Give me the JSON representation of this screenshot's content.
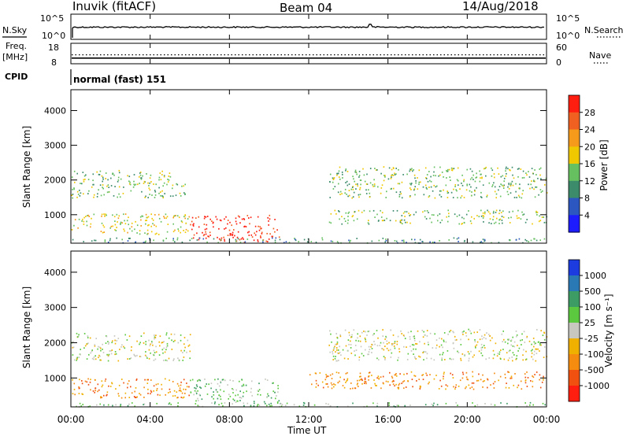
{
  "header": {
    "station": "Inuvik (fitACF)",
    "beam": "Beam 04",
    "date": "14/Aug/2018"
  },
  "nsky_panel": {
    "left_label": "N.Sky",
    "right_label": "N.Search",
    "left_ticks": [
      "10^5",
      "10^0"
    ],
    "right_ticks": [
      "10^5",
      "10^0"
    ]
  },
  "freq_panel": {
    "left_label_line1": "Freq.",
    "left_label_line2": "[MHz]",
    "right_label": "Nave",
    "left_ticks": [
      "18",
      "8"
    ],
    "right_ticks": [
      "60",
      "0"
    ],
    "freq_level_mhz": 10.5,
    "nave_level": 25
  },
  "cpid": {
    "label": "CPID",
    "mode": "normal (fast) 151"
  },
  "chart_data": [
    {
      "type": "heatmap",
      "name": "power",
      "ylabel": "Slant Range [km]",
      "xlabel": "",
      "ylim": [
        180,
        4600
      ],
      "yticks": [
        "1000",
        "2000",
        "3000",
        "4000"
      ],
      "x_hours": [
        0,
        24
      ],
      "colorbar_label": "Power [dB]",
      "colorbar_ticks": [
        "4",
        "8",
        "12",
        "16",
        "20",
        "24",
        "28"
      ],
      "colorbar_colors": [
        "#1c1cff",
        "#2c56c0",
        "#3c8c6c",
        "#66c060",
        "#f0c800",
        "#f59a1a",
        "#f06020",
        "#ff1e10"
      ],
      "scatter_bands": [
        {
          "x0": 0,
          "x1": 5,
          "y0": 1500,
          "y1": 2300,
          "level": 3
        },
        {
          "x0": 5,
          "x1": 6,
          "y0": 1550,
          "y1": 1950,
          "level": 3
        },
        {
          "x0": 13,
          "x1": 24,
          "y0": 1500,
          "y1": 2400,
          "level": 3
        },
        {
          "x0": 13,
          "x1": 24,
          "y0": 750,
          "y1": 1150,
          "level": 3
        },
        {
          "x0": 0,
          "x1": 6,
          "y0": 450,
          "y1": 1050,
          "level": 4
        },
        {
          "x0": 6,
          "x1": 10.5,
          "y0": 220,
          "y1": 1000,
          "level": 7
        },
        {
          "x0": 0,
          "x1": 24,
          "y0": 200,
          "y1": 350,
          "level": 2
        }
      ]
    },
    {
      "type": "heatmap",
      "name": "velocity",
      "ylabel": "Slant Range [km]",
      "xlabel": "Time UT",
      "ylim": [
        180,
        4600
      ],
      "yticks": [
        "1000",
        "2000",
        "3000",
        "4000"
      ],
      "xticks": [
        "00:00",
        "04:00",
        "08:00",
        "12:00",
        "16:00",
        "20:00",
        "00:00"
      ],
      "colorbar_label": "Velocity [m s⁻¹]",
      "colorbar_ticks": [
        "1000",
        "500",
        "100",
        "25",
        "-25",
        "-100",
        "-500",
        "-1000"
      ],
      "colorbar_colors": [
        "#1c3ce0",
        "#2a78b4",
        "#3c9c64",
        "#5cc840",
        "#c8c8c0",
        "#f0b000",
        "#f58c10",
        "#f05010",
        "#ff1e10"
      ],
      "scatter_bands": [
        {
          "x0": 0,
          "x1": 6,
          "y0": 1500,
          "y1": 2300,
          "level": 4
        },
        {
          "x0": 13,
          "x1": 24,
          "y0": 1500,
          "y1": 2400,
          "level": 4
        },
        {
          "x0": 6,
          "x1": 10.5,
          "y0": 300,
          "y1": 1000,
          "level": 3
        },
        {
          "x0": 0,
          "x1": 6,
          "y0": 450,
          "y1": 1000,
          "level": 6
        },
        {
          "x0": 12,
          "x1": 24,
          "y0": 700,
          "y1": 1200,
          "level": 6
        },
        {
          "x0": 0,
          "x1": 24,
          "y0": 200,
          "y1": 320,
          "level": 3
        }
      ]
    }
  ]
}
